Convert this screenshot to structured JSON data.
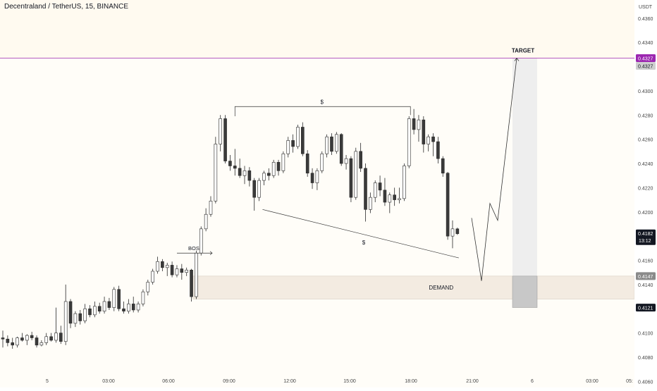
{
  "header": {
    "title": "Decentraland / TetherUS, 15, BINANCE",
    "currency": "USDT"
  },
  "colors": {
    "background": "#fffdf8",
    "up": "#ffffff",
    "down": "#3a3a3a",
    "wick": "#2a2a2a",
    "demand_zone": "#f3ebe1",
    "target_line": "#9c27b0",
    "projection_box": "#eeeeee"
  },
  "chart_data": {
    "type": "candlestick",
    "ylim": [
      0.4055,
      0.4375
    ],
    "y_ticks": [
      "0.4360",
      "0.4340",
      "0.4320",
      "0.4300",
      "0.4280",
      "0.4260",
      "0.4240",
      "0.4220",
      "0.4200",
      "0.4180",
      "0.4160",
      "0.4140",
      "0.4120",
      "0.4100",
      "0.4080",
      "0.4060"
    ],
    "x_ticks": [
      "5",
      "03:00",
      "06:00",
      "09:00",
      "12:00",
      "15:00",
      "18:00",
      "21:00",
      "6",
      "03:00",
      "05:"
    ],
    "candles": [
      [
        0.4096,
        0.4102,
        0.4088,
        0.4095
      ],
      [
        0.4095,
        0.4098,
        0.4089,
        0.4092
      ],
      [
        0.4092,
        0.4096,
        0.4087,
        0.409
      ],
      [
        0.409,
        0.4097,
        0.4088,
        0.4096
      ],
      [
        0.4096,
        0.41,
        0.4093,
        0.4094
      ],
      [
        0.4094,
        0.4099,
        0.409,
        0.4098
      ],
      [
        0.4098,
        0.4101,
        0.4094,
        0.4096
      ],
      [
        0.4096,
        0.4098,
        0.4088,
        0.409
      ],
      [
        0.409,
        0.4094,
        0.4089,
        0.4092
      ],
      [
        0.4092,
        0.41,
        0.409,
        0.4097
      ],
      [
        0.4097,
        0.41,
        0.4093,
        0.4094
      ],
      [
        0.4094,
        0.4121,
        0.4092,
        0.41
      ],
      [
        0.41,
        0.4106,
        0.4091,
        0.4093
      ],
      [
        0.4093,
        0.414,
        0.409,
        0.4126
      ],
      [
        0.4126,
        0.4128,
        0.4104,
        0.4108
      ],
      [
        0.4108,
        0.4118,
        0.4105,
        0.4116
      ],
      [
        0.4116,
        0.4119,
        0.4107,
        0.411
      ],
      [
        0.411,
        0.4124,
        0.4108,
        0.412
      ],
      [
        0.412,
        0.4123,
        0.4113,
        0.4115
      ],
      [
        0.4115,
        0.4126,
        0.4113,
        0.4122
      ],
      [
        0.4122,
        0.4125,
        0.4116,
        0.4118
      ],
      [
        0.4118,
        0.413,
        0.4116,
        0.4126
      ],
      [
        0.4126,
        0.4129,
        0.4119,
        0.4121
      ],
      [
        0.4121,
        0.4138,
        0.4118,
        0.4136
      ],
      [
        0.4136,
        0.4139,
        0.4118,
        0.412
      ],
      [
        0.412,
        0.4126,
        0.4116,
        0.4118
      ],
      [
        0.4118,
        0.4128,
        0.4116,
        0.4124
      ],
      [
        0.4124,
        0.413,
        0.4117,
        0.4119
      ],
      [
        0.4119,
        0.4126,
        0.4117,
        0.4124
      ],
      [
        0.4124,
        0.4136,
        0.4122,
        0.4134
      ],
      [
        0.4134,
        0.4144,
        0.4131,
        0.4142
      ],
      [
        0.4142,
        0.4153,
        0.414,
        0.4151
      ],
      [
        0.4151,
        0.4163,
        0.4149,
        0.4159
      ],
      [
        0.4159,
        0.4161,
        0.4151,
        0.4154
      ],
      [
        0.4154,
        0.4158,
        0.4147,
        0.4156
      ],
      [
        0.4156,
        0.4159,
        0.4146,
        0.4148
      ],
      [
        0.4148,
        0.4156,
        0.4146,
        0.4153
      ],
      [
        0.4153,
        0.4157,
        0.4144,
        0.415
      ],
      [
        0.415,
        0.4154,
        0.4147,
        0.4152
      ],
      [
        0.4152,
        0.4153,
        0.4126,
        0.413
      ],
      [
        0.413,
        0.4168,
        0.4128,
        0.4166
      ],
      [
        0.4166,
        0.4188,
        0.4164,
        0.4186
      ],
      [
        0.4186,
        0.4203,
        0.4184,
        0.4198
      ],
      [
        0.4198,
        0.4213,
        0.4196,
        0.4209
      ],
      [
        0.4209,
        0.4262,
        0.4207,
        0.4256
      ],
      [
        0.4256,
        0.428,
        0.425,
        0.4277
      ],
      [
        0.4277,
        0.428,
        0.424,
        0.4242
      ],
      [
        0.4242,
        0.4247,
        0.4234,
        0.4238
      ],
      [
        0.4238,
        0.4252,
        0.423,
        0.4236
      ],
      [
        0.4236,
        0.4244,
        0.4228,
        0.423
      ],
      [
        0.423,
        0.4238,
        0.4223,
        0.4234
      ],
      [
        0.4234,
        0.4237,
        0.4221,
        0.4226
      ],
      [
        0.4226,
        0.4228,
        0.4201,
        0.4212
      ],
      [
        0.4212,
        0.4228,
        0.4209,
        0.4226
      ],
      [
        0.4226,
        0.4234,
        0.4222,
        0.4232
      ],
      [
        0.4232,
        0.4236,
        0.4226,
        0.423
      ],
      [
        0.423,
        0.4243,
        0.4228,
        0.4241
      ],
      [
        0.4241,
        0.4243,
        0.423,
        0.4234
      ],
      [
        0.4234,
        0.425,
        0.4232,
        0.4248
      ],
      [
        0.4248,
        0.4262,
        0.4245,
        0.4259
      ],
      [
        0.4259,
        0.4264,
        0.4249,
        0.4254
      ],
      [
        0.4254,
        0.4272,
        0.4252,
        0.427
      ],
      [
        0.427,
        0.4274,
        0.4246,
        0.4248
      ],
      [
        0.4248,
        0.4251,
        0.4229,
        0.4232
      ],
      [
        0.4232,
        0.4236,
        0.4219,
        0.4224
      ],
      [
        0.4224,
        0.4236,
        0.4218,
        0.4234
      ],
      [
        0.4234,
        0.425,
        0.4232,
        0.4248
      ],
      [
        0.4248,
        0.4264,
        0.4245,
        0.4262
      ],
      [
        0.4262,
        0.4265,
        0.4247,
        0.425
      ],
      [
        0.425,
        0.4266,
        0.4248,
        0.4264
      ],
      [
        0.4264,
        0.4265,
        0.4238,
        0.424
      ],
      [
        0.424,
        0.4247,
        0.4235,
        0.4244
      ],
      [
        0.4244,
        0.4246,
        0.4208,
        0.4212
      ],
      [
        0.4212,
        0.4253,
        0.421,
        0.425
      ],
      [
        0.425,
        0.4257,
        0.4233,
        0.4236
      ],
      [
        0.4236,
        0.424,
        0.4192,
        0.4202
      ],
      [
        0.4202,
        0.4216,
        0.4199,
        0.4212
      ],
      [
        0.4212,
        0.4226,
        0.4208,
        0.4224
      ],
      [
        0.4224,
        0.423,
        0.4213,
        0.4218
      ],
      [
        0.4218,
        0.4228,
        0.4205,
        0.4208
      ],
      [
        0.4208,
        0.4216,
        0.4199,
        0.4214
      ],
      [
        0.4214,
        0.422,
        0.4205,
        0.421
      ],
      [
        0.421,
        0.422,
        0.4207,
        0.4211
      ],
      [
        0.4211,
        0.424,
        0.4209,
        0.4238
      ],
      [
        0.4238,
        0.4279,
        0.4236,
        0.4277
      ],
      [
        0.4277,
        0.4285,
        0.4264,
        0.4268
      ],
      [
        0.4268,
        0.428,
        0.4258,
        0.4276
      ],
      [
        0.4276,
        0.4279,
        0.4249,
        0.4256
      ],
      [
        0.4256,
        0.4264,
        0.425,
        0.4262
      ],
      [
        0.4262,
        0.4265,
        0.4246,
        0.4258
      ],
      [
        0.4258,
        0.4262,
        0.424,
        0.4244
      ],
      [
        0.4244,
        0.4246,
        0.4229,
        0.4232
      ],
      [
        0.4232,
        0.4233,
        0.4177,
        0.418
      ],
      [
        0.418,
        0.4193,
        0.417,
        0.4186
      ],
      [
        0.4186,
        0.4187,
        0.4181,
        0.4182
      ]
    ],
    "annotations": {
      "bos": "BOS",
      "liquidity_top": "$",
      "liquidity_bottom": "$",
      "demand": "DEMAND",
      "target": "TARGET"
    },
    "levels": {
      "target": 0.4327,
      "demand_top": 0.4147,
      "demand_bottom": 0.4128,
      "current": 0.4182,
      "countdown": "13:12",
      "stop": 0.4121
    },
    "price_labels": {
      "target_label": "0.4327",
      "target_grey": "0.4327",
      "current": "0.4182",
      "demand": "0.4147",
      "stop": "0.4121",
      "countdown": "13:12"
    },
    "projection_path": [
      [
        0.4195,
        0.4143
      ],
      [
        0.4143,
        0.4207
      ],
      [
        0.4207,
        0.4193
      ],
      [
        0.4193,
        0.4327
      ]
    ]
  }
}
